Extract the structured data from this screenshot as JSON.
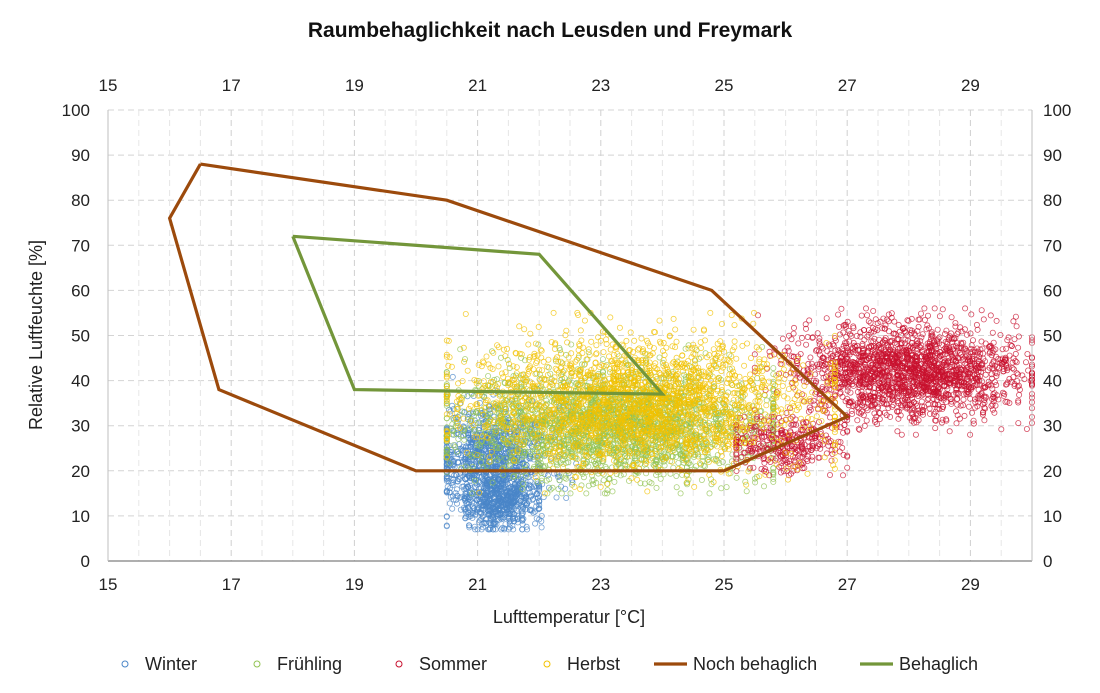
{
  "chart_data": {
    "type": "scatter",
    "title": "Raumbehaglichkeit nach Leusden und Freymark",
    "xlabel": "Lufttemperatur [°C]",
    "ylabel": "Relative Luftfeuchte [%]",
    "xlim": [
      15,
      30
    ],
    "ylim": [
      0,
      100
    ],
    "x_ticks": [
      15,
      17,
      19,
      21,
      23,
      25,
      27,
      29
    ],
    "y_ticks": [
      0,
      10,
      20,
      30,
      40,
      50,
      60,
      70,
      80,
      90,
      100
    ],
    "x_tick_labels": [
      "15",
      "17",
      "19",
      "21",
      "23",
      "25",
      "27",
      "29"
    ],
    "y_tick_labels": [
      "0",
      "10",
      "20",
      "30",
      "40",
      "50",
      "60",
      "70",
      "80",
      "90",
      "100"
    ],
    "grid": true,
    "secondary_axes": true,
    "legend_position": "bottom",
    "scatter_series": [
      {
        "name": "Winter",
        "color": "#4a86c8",
        "count": 1500,
        "clusters": [
          {
            "weight": 0.7,
            "x_mean": 21.2,
            "x_sd": 0.45,
            "x_min": 20.5,
            "x_max": 22.6,
            "y_mean": 22,
            "y_sd": 6,
            "y_min": 7,
            "y_max": 41
          },
          {
            "weight": 0.3,
            "x_mean": 21.4,
            "x_sd": 0.3,
            "x_min": 20.8,
            "x_max": 22.0,
            "y_mean": 13,
            "y_sd": 3,
            "y_min": 7,
            "y_max": 20
          }
        ]
      },
      {
        "name": "Frühling",
        "color": "#92c353",
        "count": 2200,
        "clusters": [
          {
            "weight": 1.0,
            "x_mean": 23.2,
            "x_sd": 1.2,
            "x_min": 20.5,
            "x_max": 25.8,
            "y_mean": 30,
            "y_sd": 6,
            "y_min": 15,
            "y_max": 48
          }
        ]
      },
      {
        "name": "Sommer",
        "color": "#c8102e",
        "count": 2200,
        "clusters": [
          {
            "weight": 0.85,
            "x_mean": 28.0,
            "x_sd": 0.9,
            "x_min": 25.5,
            "x_max": 30.0,
            "y_mean": 42,
            "y_sd": 5,
            "y_min": 28,
            "y_max": 56
          },
          {
            "weight": 0.15,
            "x_mean": 26.0,
            "x_sd": 0.5,
            "x_min": 25.2,
            "x_max": 27.0,
            "y_mean": 26,
            "y_sd": 3,
            "y_min": 19,
            "y_max": 32
          }
        ]
      },
      {
        "name": "Herbst",
        "color": "#f2c200",
        "count": 2200,
        "clusters": [
          {
            "weight": 1.0,
            "x_mean": 23.6,
            "x_sd": 1.35,
            "x_min": 20.5,
            "x_max": 26.8,
            "y_mean": 35,
            "y_sd": 7,
            "y_min": 15,
            "y_max": 55
          }
        ]
      }
    ],
    "line_series": [
      {
        "name": "Noch behaglich",
        "color": "#9c4a0c",
        "x": [
          16.5,
          20.5,
          24.8,
          27.0,
          25.0,
          20.0,
          16.8,
          16.0,
          16.5
        ],
        "y": [
          88,
          80,
          60,
          32,
          20,
          20,
          38,
          76,
          88
        ]
      },
      {
        "name": "Behaglich",
        "color": "#73963a",
        "x": [
          18.0,
          22.0,
          24.0,
          19.0,
          18.0
        ],
        "y": [
          72,
          68,
          37,
          38,
          72
        ]
      }
    ],
    "legend": [
      {
        "label": "Winter",
        "kind": "marker",
        "color": "#4a86c8"
      },
      {
        "label": "Frühling",
        "kind": "marker",
        "color": "#92c353"
      },
      {
        "label": "Sommer",
        "kind": "marker",
        "color": "#c8102e"
      },
      {
        "label": "Herbst",
        "kind": "marker",
        "color": "#f2c200"
      },
      {
        "label": "Noch behaglich",
        "kind": "line",
        "color": "#9c4a0c"
      },
      {
        "label": "Behaglich",
        "kind": "line",
        "color": "#73963a"
      }
    ]
  }
}
